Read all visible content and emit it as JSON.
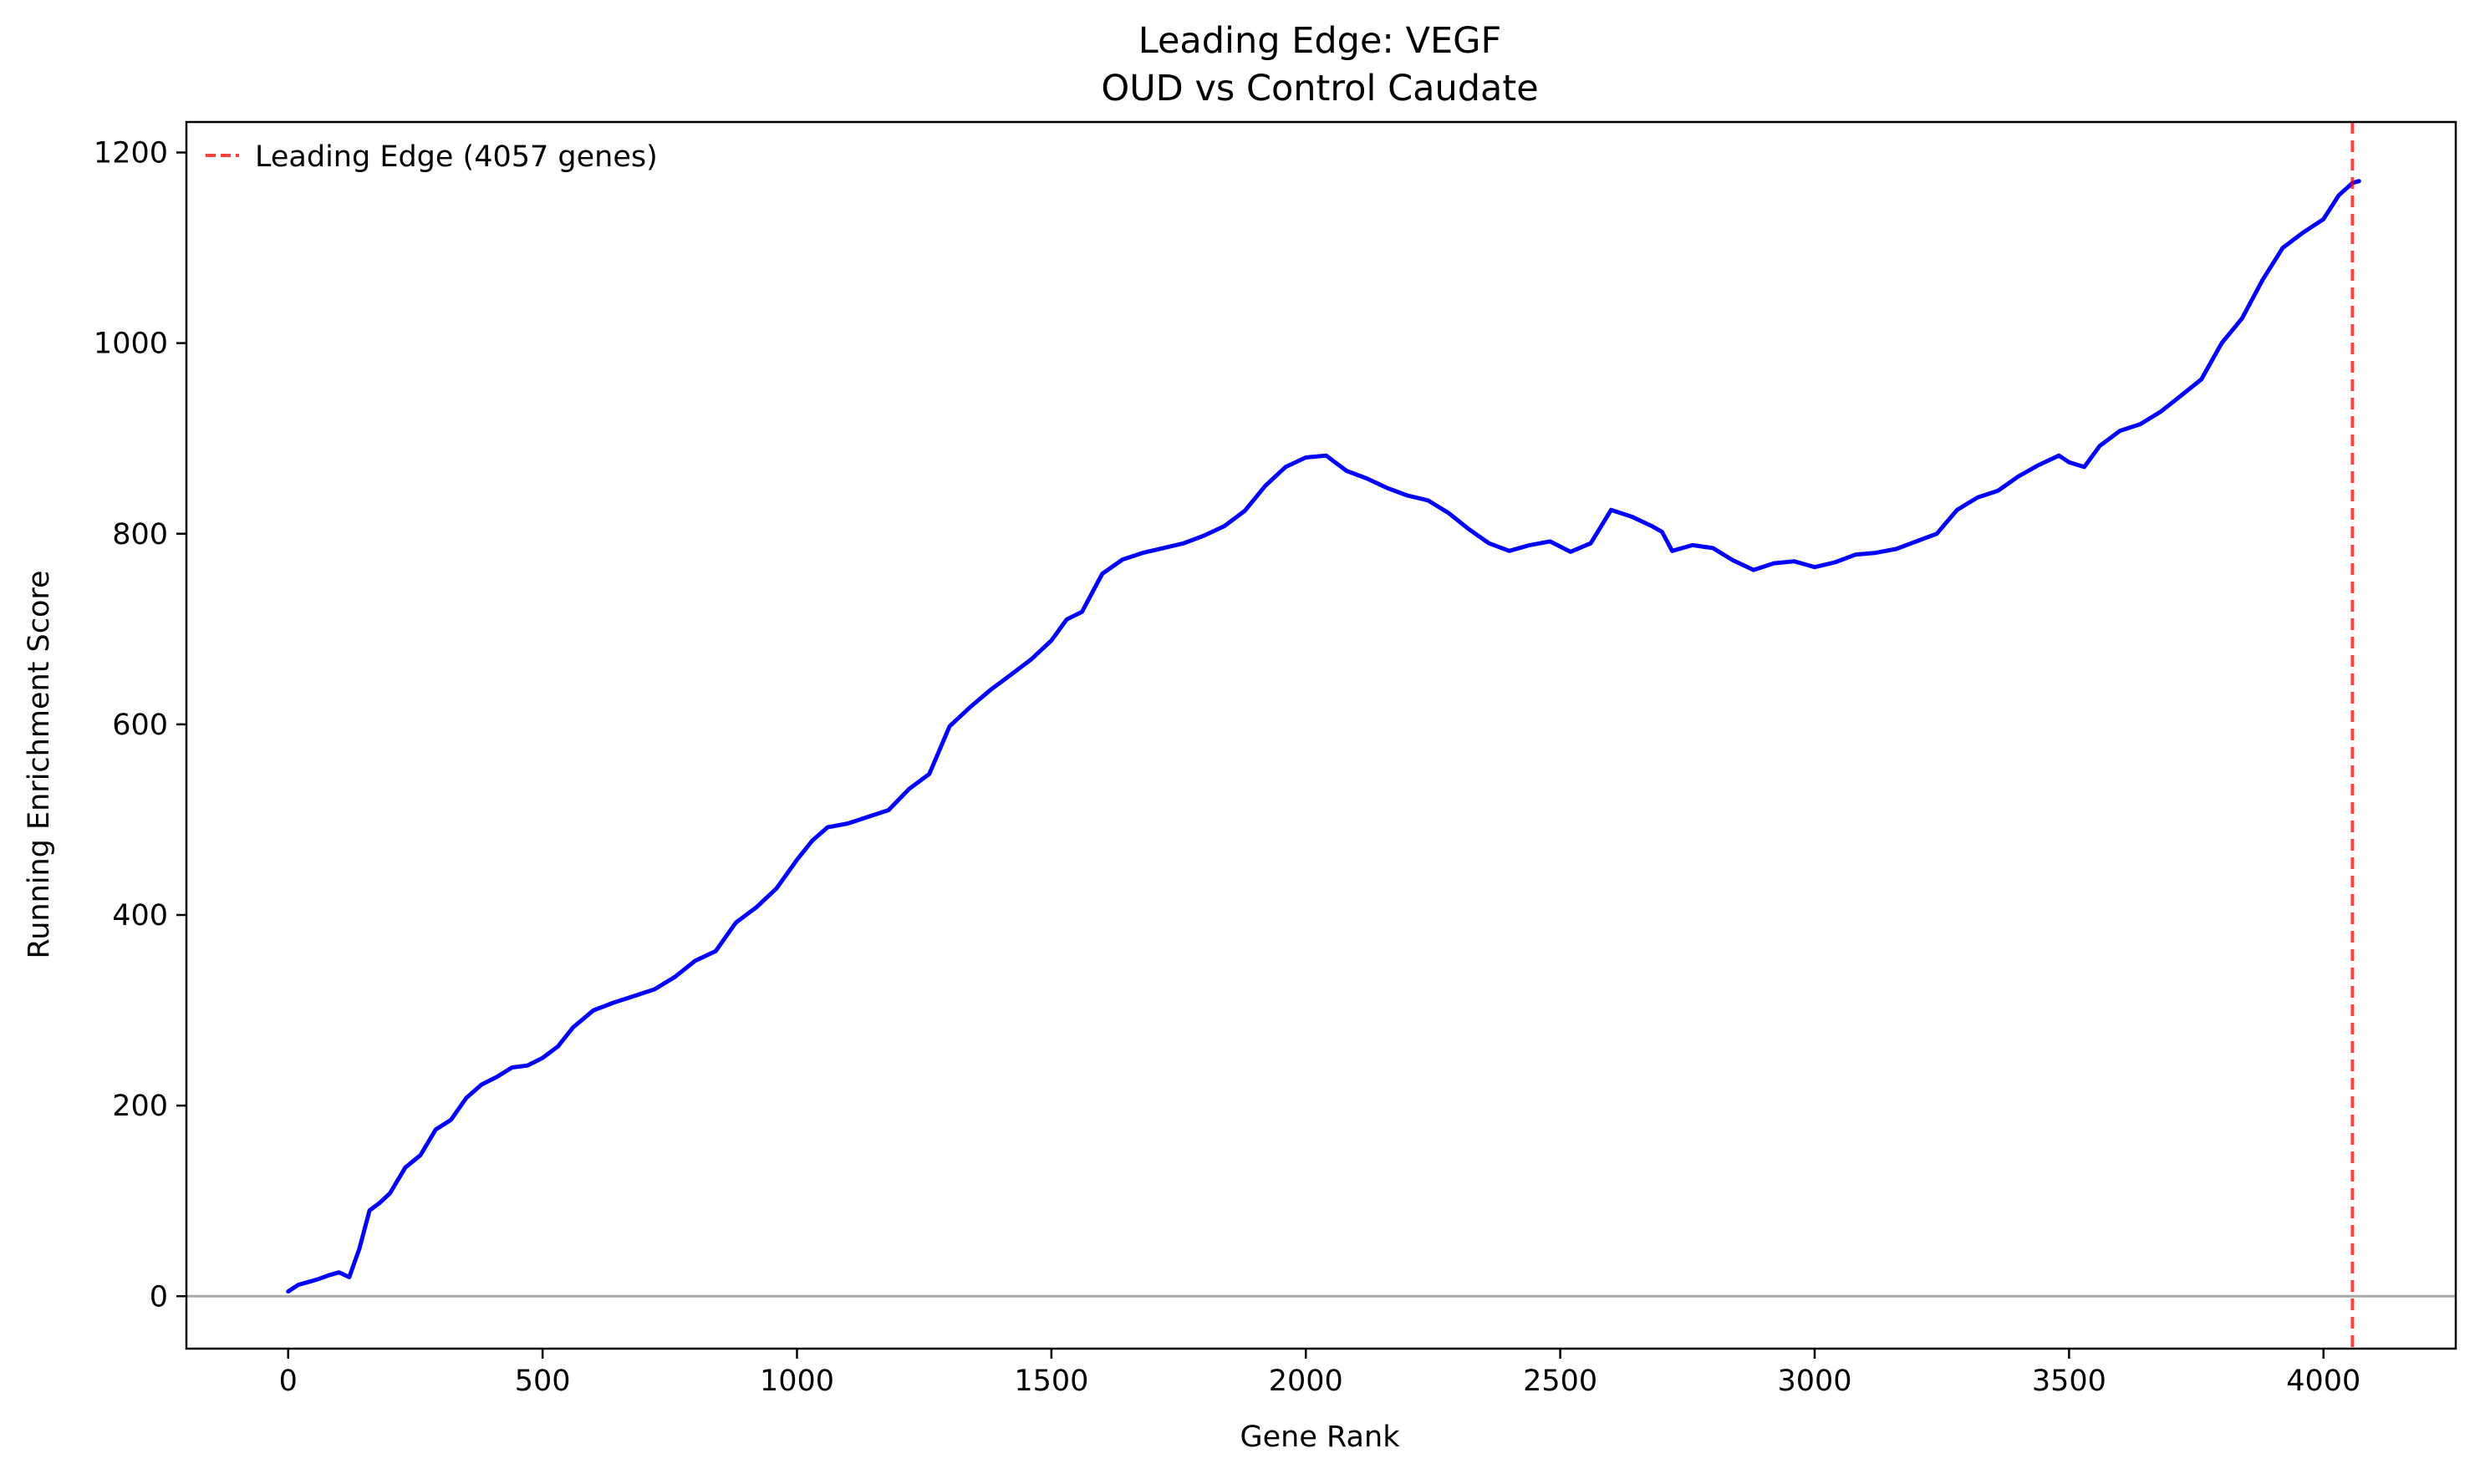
{
  "chart_data": {
    "type": "line",
    "title_line1": "Leading Edge: VEGF",
    "title_line2": "OUD vs Control Caudate",
    "xlabel": "Gene Rank",
    "ylabel": "Running Enrichment Score",
    "xlim": [
      -200,
      4260
    ],
    "ylim": [
      -55,
      1232
    ],
    "xticks": [
      0,
      500,
      1000,
      1500,
      2000,
      2500,
      3000,
      3500,
      4000
    ],
    "yticks": [
      0,
      200,
      400,
      600,
      800,
      1000,
      1200
    ],
    "xtick_labels": [
      "0",
      "500",
      "1000",
      "1500",
      "2000",
      "2500",
      "3000",
      "3500",
      "4000"
    ],
    "ytick_labels": [
      "0",
      "200",
      "400",
      "600",
      "800",
      "1000",
      "1200"
    ],
    "grid": false,
    "legend": {
      "placement": "top-left",
      "entries": [
        {
          "label": "Leading Edge (4057 genes)",
          "color": "#ff0000",
          "style": "dashed",
          "opacity": 0.75
        }
      ]
    },
    "zero_line": {
      "y": 0,
      "color": "#a9a9a9"
    },
    "leading_edge": {
      "x": 4057,
      "color": "#ff0000",
      "style": "dashed"
    },
    "series": [
      {
        "color": "#0000ff",
        "x": [
          0,
          20,
          40,
          60,
          80,
          100,
          120,
          140,
          160,
          180,
          200,
          230,
          260,
          290,
          320,
          350,
          380,
          410,
          440,
          470,
          500,
          530,
          560,
          600,
          640,
          680,
          720,
          760,
          800,
          840,
          880,
          920,
          960,
          1000,
          1030,
          1060,
          1100,
          1140,
          1180,
          1220,
          1260,
          1300,
          1340,
          1380,
          1420,
          1460,
          1500,
          1530,
          1560,
          1600,
          1640,
          1680,
          1720,
          1760,
          1800,
          1840,
          1880,
          1920,
          1960,
          2000,
          2040,
          2080,
          2120,
          2160,
          2200,
          2240,
          2280,
          2320,
          2360,
          2400,
          2440,
          2480,
          2520,
          2560,
          2600,
          2640,
          2680,
          2700,
          2720,
          2760,
          2800,
          2840,
          2880,
          2920,
          2960,
          3000,
          3040,
          3080,
          3120,
          3160,
          3200,
          3240,
          3280,
          3320,
          3360,
          3400,
          3440,
          3480,
          3500,
          3530,
          3560,
          3600,
          3640,
          3680,
          3720,
          3760,
          3800,
          3840,
          3880,
          3920,
          3960,
          4000,
          4030,
          4057,
          4070
        ],
        "values": [
          5,
          12,
          15,
          18,
          22,
          25,
          20,
          50,
          90,
          98,
          108,
          135,
          148,
          175,
          185,
          208,
          222,
          230,
          240,
          242,
          250,
          262,
          282,
          300,
          308,
          315,
          322,
          335,
          352,
          362,
          392,
          408,
          428,
          458,
          478,
          492,
          496,
          503,
          510,
          532,
          548,
          598,
          618,
          636,
          652,
          668,
          688,
          710,
          718,
          758,
          773,
          780,
          785,
          790,
          798,
          808,
          824,
          850,
          870,
          880,
          882,
          866,
          858,
          848,
          840,
          835,
          822,
          805,
          790,
          782,
          788,
          792,
          781,
          790,
          825,
          818,
          808,
          802,
          782,
          788,
          785,
          772,
          762,
          769,
          771,
          765,
          770,
          778,
          780,
          784,
          792,
          800,
          825,
          838,
          845,
          860,
          872,
          882,
          875,
          870,
          892,
          908,
          915,
          928,
          945,
          962,
          1000,
          1026,
          1066,
          1100,
          1116,
          1130,
          1155,
          1168,
          1170
        ]
      }
    ]
  }
}
